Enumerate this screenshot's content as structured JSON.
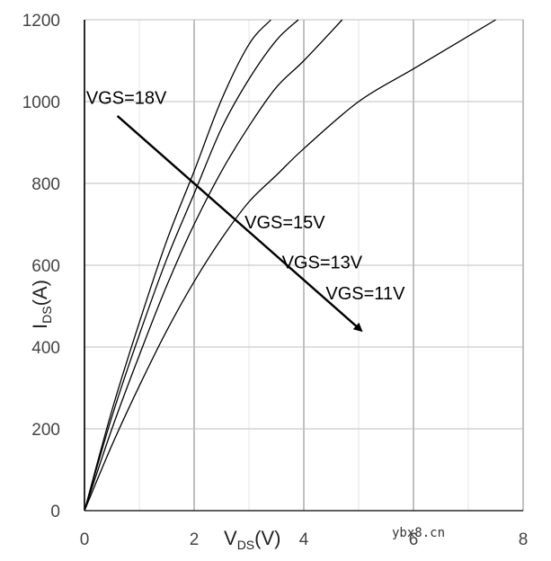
{
  "chart_data": {
    "type": "line",
    "title": "",
    "xlabel": {
      "main": "V",
      "sub": "DS",
      "suffix": "(V)"
    },
    "ylabel": {
      "main": "I",
      "sub": "DS",
      "suffix": "(A)"
    },
    "xlim": [
      0,
      8
    ],
    "ylim": [
      0,
      1200
    ],
    "x_ticks": [
      0,
      2,
      4,
      6,
      8
    ],
    "y_ticks": [
      0,
      200,
      400,
      600,
      800,
      1000,
      1200
    ],
    "grid": true,
    "series": [
      {
        "name": "VGS=18V",
        "x": [
          0,
          0.5,
          1.0,
          1.5,
          2.0,
          2.5,
          3.0,
          3.4
        ],
        "y": [
          0,
          245,
          460,
          660,
          830,
          1005,
          1140,
          1200
        ]
      },
      {
        "name": "VGS=15V",
        "x": [
          0,
          0.5,
          1.0,
          1.5,
          2.0,
          2.5,
          3.0,
          3.5,
          3.9
        ],
        "y": [
          0,
          230,
          430,
          615,
          775,
          935,
          1055,
          1150,
          1200
        ]
      },
      {
        "name": "VGS=13V",
        "x": [
          0,
          0.5,
          1.0,
          1.5,
          2.0,
          2.5,
          3.0,
          3.5,
          4.0,
          4.7
        ],
        "y": [
          0,
          200,
          380,
          550,
          700,
          830,
          940,
          1035,
          1100,
          1200
        ]
      },
      {
        "name": "VGS=11V",
        "x": [
          0,
          0.5,
          1.0,
          1.5,
          2.0,
          2.5,
          3.0,
          3.5,
          4.0,
          5.0,
          6.0,
          7.0,
          7.5
        ],
        "y": [
          0,
          160,
          305,
          440,
          560,
          665,
          755,
          820,
          885,
          1000,
          1080,
          1160,
          1200
        ]
      }
    ],
    "annotations": [
      {
        "text": "VGS=18V",
        "x": 0.03,
        "y": 995
      },
      {
        "text": "VGS=15V",
        "x": 2.92,
        "y": 690
      },
      {
        "text": "VGS=13V",
        "x": 3.6,
        "y": 592
      },
      {
        "text": "VGS=11V",
        "x": 4.4,
        "y": 517
      }
    ],
    "arrow": {
      "from": [
        0.6,
        965
      ],
      "to": [
        5.05,
        440
      ]
    }
  },
  "watermark": "ybx8.cn"
}
